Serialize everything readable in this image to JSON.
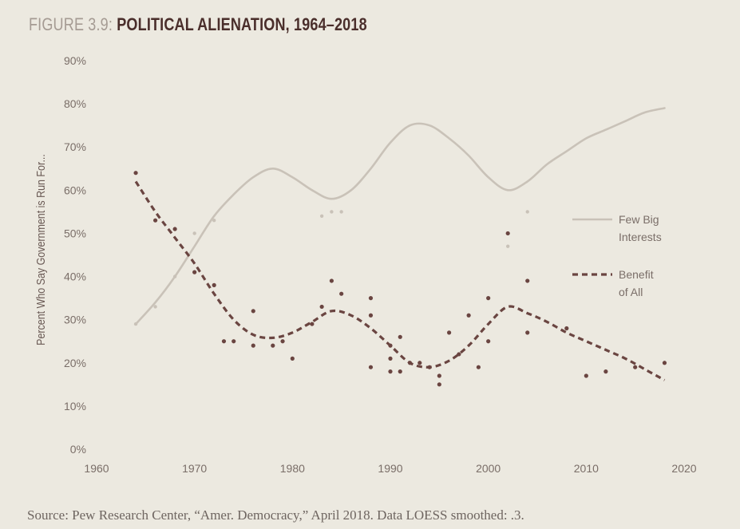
{
  "figure": {
    "label": "FIGURE 3.9:",
    "title": "POLITICAL ALIENATION, 1964–2018",
    "caption": "Source: Pew Research Center, “Amer. Democracy,” April 2018. Data LOESS smoothed: .3."
  },
  "colors": {
    "background": "#ece9e0",
    "few_big_interests": "#c9c2b8",
    "benefit_of_all": "#6a4541",
    "title": "#4a2e2b",
    "axis_text": "#7a6e68"
  },
  "chart_data": {
    "type": "line",
    "ylabel": "Percent Who Say Government is Run For...",
    "xlabel": "",
    "xlim": [
      1960,
      2020
    ],
    "ylim": [
      0,
      90
    ],
    "x_ticks": [
      "1960",
      "1970",
      "1980",
      "1990",
      "2000",
      "2010",
      "2020"
    ],
    "x_tick_values": [
      1960,
      1970,
      1980,
      1990,
      2000,
      2010,
      2020
    ],
    "y_ticks": [
      "0%",
      "10%",
      "20%",
      "30%",
      "40%",
      "50%",
      "60%",
      "70%",
      "80%",
      "90%"
    ],
    "y_tick_values": [
      0,
      10,
      20,
      30,
      40,
      50,
      60,
      70,
      80,
      90
    ],
    "legend": [
      {
        "key": "few_big_interests",
        "label_line1": "Few Big",
        "label_line2": "Interests",
        "style": "solid"
      },
      {
        "key": "benefit_of_all",
        "label_line1": "Benefit",
        "label_line2": "of All",
        "style": "dashed"
      }
    ],
    "series": [
      {
        "key": "few_big_interests",
        "name": "Few Big Interests",
        "style": "solid",
        "smoothed": [
          [
            1964,
            29
          ],
          [
            1966,
            34
          ],
          [
            1968,
            40
          ],
          [
            1970,
            47
          ],
          [
            1972,
            54
          ],
          [
            1974,
            59
          ],
          [
            1976,
            63
          ],
          [
            1978,
            65
          ],
          [
            1980,
            63
          ],
          [
            1982,
            60
          ],
          [
            1984,
            58
          ],
          [
            1986,
            60
          ],
          [
            1988,
            65
          ],
          [
            1990,
            71
          ],
          [
            1992,
            75
          ],
          [
            1994,
            75
          ],
          [
            1996,
            72
          ],
          [
            1998,
            68
          ],
          [
            2000,
            63
          ],
          [
            2002,
            60
          ],
          [
            2004,
            62
          ],
          [
            2006,
            66
          ],
          [
            2008,
            69
          ],
          [
            2010,
            72
          ],
          [
            2012,
            74
          ],
          [
            2014,
            76
          ],
          [
            2016,
            78
          ],
          [
            2018,
            79
          ]
        ],
        "points": [
          [
            1964,
            29
          ],
          [
            1966,
            33
          ],
          [
            1968,
            40
          ],
          [
            1970,
            50
          ],
          [
            1972,
            53
          ],
          [
            1983,
            54
          ],
          [
            1984,
            55
          ],
          [
            1985,
            55
          ],
          [
            2002,
            47
          ],
          [
            2004,
            55
          ]
        ]
      },
      {
        "key": "benefit_of_all",
        "name": "Benefit of All",
        "style": "dashed",
        "smoothed": [
          [
            1964,
            62
          ],
          [
            1966,
            55
          ],
          [
            1968,
            49
          ],
          [
            1970,
            43
          ],
          [
            1972,
            36
          ],
          [
            1974,
            30
          ],
          [
            1976,
            26.5
          ],
          [
            1978,
            25.8
          ],
          [
            1980,
            27
          ],
          [
            1982,
            29.5
          ],
          [
            1984,
            32
          ],
          [
            1986,
            31
          ],
          [
            1988,
            28
          ],
          [
            1990,
            24
          ],
          [
            1992,
            20
          ],
          [
            1994,
            19
          ],
          [
            1996,
            20.5
          ],
          [
            1998,
            24
          ],
          [
            2000,
            29
          ],
          [
            2002,
            33
          ],
          [
            2004,
            31.5
          ],
          [
            2006,
            29.5
          ],
          [
            2008,
            27
          ],
          [
            2010,
            25
          ],
          [
            2012,
            23
          ],
          [
            2014,
            21
          ],
          [
            2016,
            18.5
          ],
          [
            2018,
            16
          ]
        ],
        "points": [
          [
            1964,
            64
          ],
          [
            1966,
            53
          ],
          [
            1968,
            51
          ],
          [
            1970,
            41
          ],
          [
            1972,
            38
          ],
          [
            1973,
            25
          ],
          [
            1974,
            25
          ],
          [
            1976,
            32
          ],
          [
            1976,
            24
          ],
          [
            1978,
            24
          ],
          [
            1979,
            25
          ],
          [
            1980,
            21
          ],
          [
            1982,
            29
          ],
          [
            1983,
            33
          ],
          [
            1984,
            39
          ],
          [
            1985,
            36
          ],
          [
            1988,
            35
          ],
          [
            1988,
            31
          ],
          [
            1988,
            19
          ],
          [
            1990,
            24
          ],
          [
            1990,
            21
          ],
          [
            1990,
            18
          ],
          [
            1991,
            26
          ],
          [
            1991,
            18
          ],
          [
            1992,
            20
          ],
          [
            1993,
            20
          ],
          [
            1994,
            19
          ],
          [
            1995,
            17
          ],
          [
            1995,
            15
          ],
          [
            1996,
            27
          ],
          [
            1997,
            22
          ],
          [
            1998,
            31
          ],
          [
            1999,
            19
          ],
          [
            2000,
            35
          ],
          [
            2000,
            25
          ],
          [
            2002,
            50
          ],
          [
            2004,
            39
          ],
          [
            2004,
            27
          ],
          [
            2008,
            28
          ],
          [
            2010,
            17
          ],
          [
            2012,
            18
          ],
          [
            2015,
            19
          ],
          [
            2018,
            20
          ]
        ]
      }
    ]
  }
}
